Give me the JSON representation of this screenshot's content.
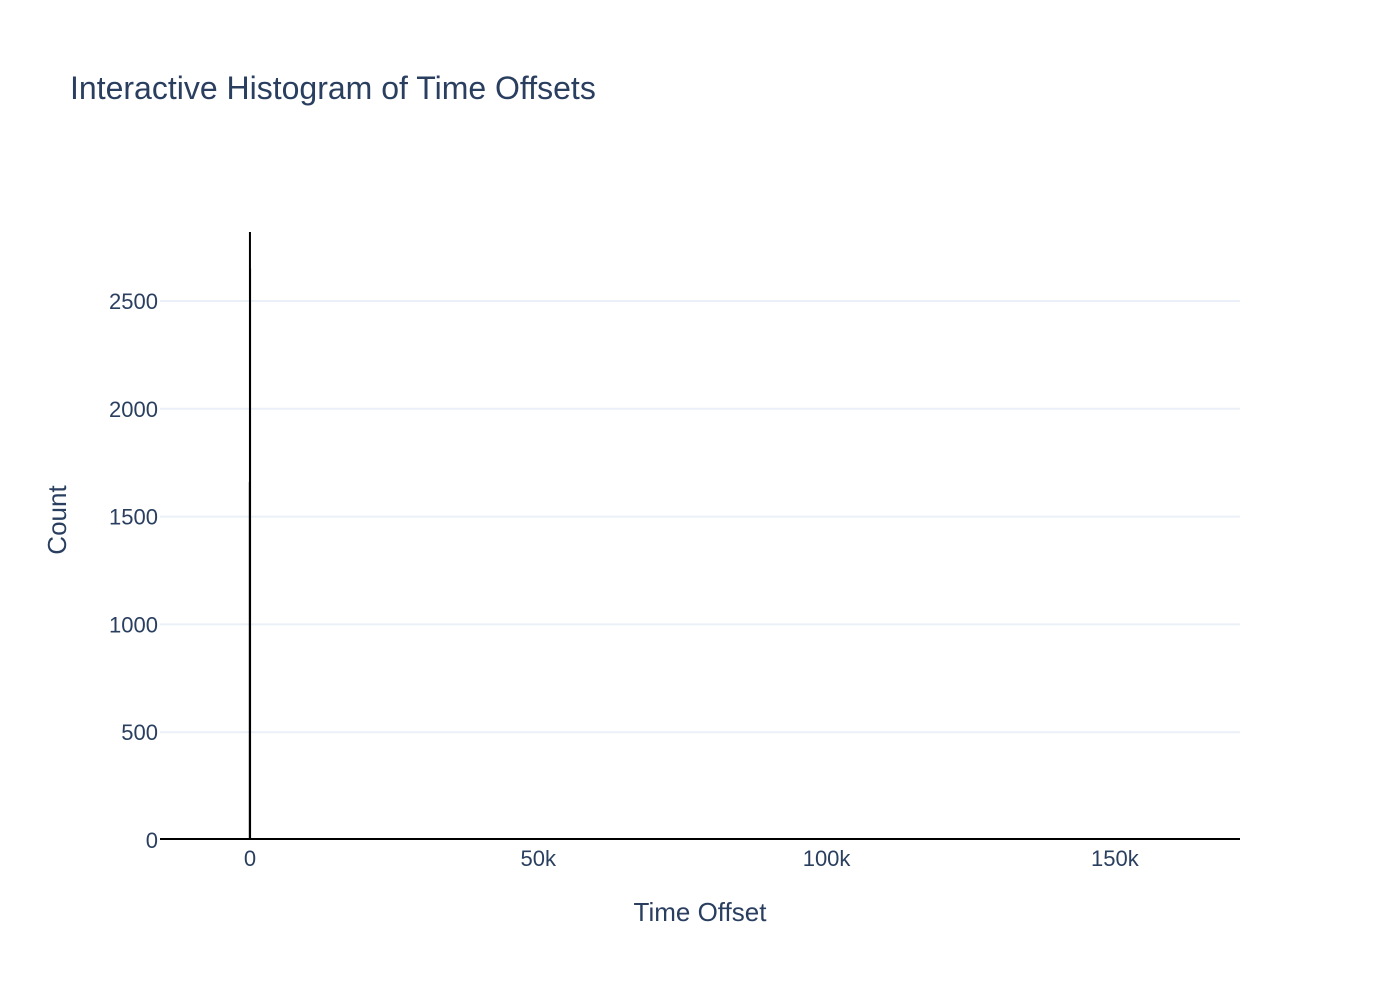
{
  "chart_data": {
    "type": "bar",
    "title": "Interactive Histogram of Time Offsets",
    "xlabel": "Time Offset",
    "ylabel": "Count",
    "xlim": [
      -15600,
      171700
    ],
    "ylim": [
      0,
      2820
    ],
    "x_ticks": [
      {
        "value": 0,
        "label": "0"
      },
      {
        "value": 50000,
        "label": "50k"
      },
      {
        "value": 100000,
        "label": "100k"
      },
      {
        "value": 150000,
        "label": "150k"
      }
    ],
    "y_ticks": [
      {
        "value": 0,
        "label": "0"
      },
      {
        "value": 500,
        "label": "500"
      },
      {
        "value": 1000,
        "label": "1000"
      },
      {
        "value": 1500,
        "label": "1500"
      },
      {
        "value": 2000,
        "label": "2000"
      },
      {
        "value": 2500,
        "label": "2500"
      }
    ],
    "grid": true,
    "bar_color": "#000000",
    "grid_color": "#ebf0f8",
    "text_color": "#2a3f5f",
    "bins": [
      {
        "x": -20,
        "count": 1660
      },
      {
        "x": 0,
        "count": 2820
      },
      {
        "x": 20,
        "count": 2650
      }
    ],
    "baseline_note_count": 3
  }
}
